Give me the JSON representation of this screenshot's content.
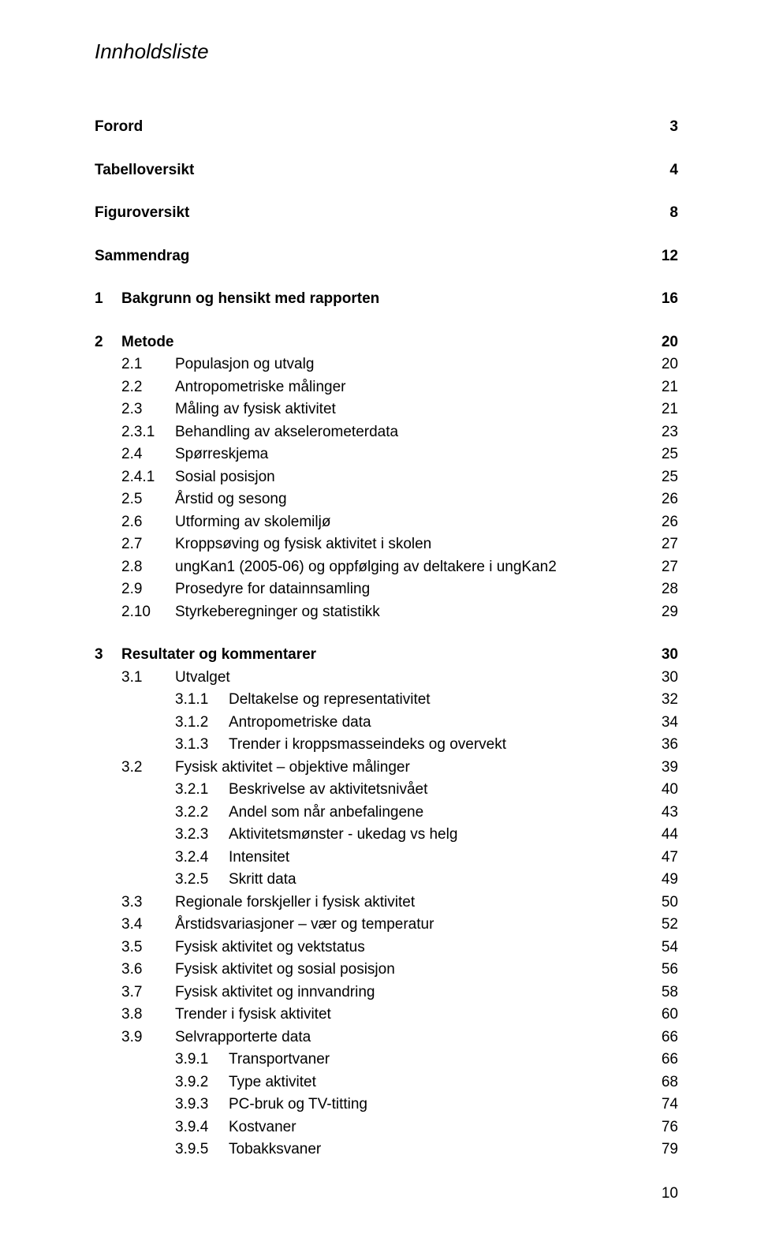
{
  "title": "Innholdsliste",
  "page_number": "10",
  "colors": {
    "background": "#ffffff",
    "text": "#000000"
  },
  "typography": {
    "base_fontsize": 19,
    "title_fontsize": 26,
    "font_family": "Arial"
  },
  "toc": [
    {
      "type": "spacer"
    },
    {
      "label": "Forord",
      "page": "3",
      "bold": true,
      "indent": 0
    },
    {
      "type": "spacer"
    },
    {
      "label": "Tabelloversikt",
      "page": "4",
      "bold": true,
      "indent": 0
    },
    {
      "type": "spacer"
    },
    {
      "label": "Figuroversikt",
      "page": "8",
      "bold": true,
      "indent": 0
    },
    {
      "type": "spacer"
    },
    {
      "label": "Sammendrag",
      "page": "12",
      "bold": true,
      "indent": 0
    },
    {
      "type": "spacer"
    },
    {
      "num": "1",
      "label": "Bakgrunn og hensikt med rapporten",
      "page": "16",
      "bold": true,
      "indent": 0,
      "numclass": "num-0"
    },
    {
      "type": "spacer"
    },
    {
      "num": "2",
      "label": "Metode",
      "page": "20",
      "bold": true,
      "indent": 0,
      "numclass": "num-0"
    },
    {
      "num": "2.1",
      "label": "Populasjon og utvalg",
      "page": "20",
      "indent": 1,
      "numclass": "num-1"
    },
    {
      "num": "2.2",
      "label": "Antropometriske målinger",
      "page": "21",
      "indent": 1,
      "numclass": "num-1"
    },
    {
      "num": "2.3",
      "label": "Måling av fysisk aktivitet",
      "page": "21",
      "indent": 1,
      "numclass": "num-1"
    },
    {
      "num": "2.3.1",
      "label": "Behandling av akselerometerdata",
      "page": "23",
      "indent": 1,
      "numclass": "num-1"
    },
    {
      "num": "2.4",
      "label": "Spørreskjema",
      "page": "25",
      "indent": 1,
      "numclass": "num-1"
    },
    {
      "num": "2.4.1",
      "label": "Sosial posisjon",
      "page": "25",
      "indent": 1,
      "numclass": "num-1"
    },
    {
      "num": "2.5",
      "label": "Årstid og sesong",
      "page": "26",
      "indent": 1,
      "numclass": "num-1"
    },
    {
      "num": "2.6",
      "label": "Utforming av skolemiljø",
      "page": "26",
      "indent": 1,
      "numclass": "num-1"
    },
    {
      "num": "2.7",
      "label": "Kroppsøving og fysisk aktivitet i skolen",
      "page": "27",
      "indent": 1,
      "numclass": "num-1"
    },
    {
      "num": "2.8",
      "label": "ungKan1 (2005-06) og oppfølging av deltakere i ungKan2",
      "page": "27",
      "indent": 1,
      "numclass": "num-1"
    },
    {
      "num": "2.9",
      "label": "Prosedyre for datainnsamling",
      "page": "28",
      "indent": 1,
      "numclass": "num-1"
    },
    {
      "num": "2.10",
      "label": "Styrkeberegninger og statistikk",
      "page": "29",
      "indent": 1,
      "numclass": "num-1"
    },
    {
      "type": "spacer"
    },
    {
      "num": "3",
      "label": "Resultater og kommentarer",
      "page": "30",
      "bold": true,
      "indent": 0,
      "numclass": "num-0"
    },
    {
      "num": "3.1",
      "label": "Utvalget",
      "page": "30",
      "indent": 1,
      "numclass": "num-1"
    },
    {
      "num": "3.1.1",
      "label": "Deltakelse og representativitet",
      "page": "32",
      "indent": 2,
      "numclass": "num-2"
    },
    {
      "num": "3.1.2",
      "label": "Antropometriske data",
      "page": "34",
      "indent": 2,
      "numclass": "num-2"
    },
    {
      "num": "3.1.3",
      "label": "Trender i kroppsmasseindeks og overvekt",
      "page": "36",
      "indent": 2,
      "numclass": "num-2"
    },
    {
      "num": "3.2",
      "label": "Fysisk aktivitet – objektive målinger",
      "page": "39",
      "indent": 1,
      "numclass": "num-1"
    },
    {
      "num": "3.2.1",
      "label": "Beskrivelse av aktivitetsnivået",
      "page": "40",
      "indent": 2,
      "numclass": "num-2"
    },
    {
      "num": "3.2.2",
      "label": "Andel som når anbefalingene",
      "page": "43",
      "indent": 2,
      "numclass": "num-2"
    },
    {
      "num": "3.2.3",
      "label": "Aktivitetsmønster - ukedag vs helg",
      "page": "44",
      "indent": 2,
      "numclass": "num-2"
    },
    {
      "num": "3.2.4",
      "label": "Intensitet",
      "page": "47",
      "indent": 2,
      "numclass": "num-2"
    },
    {
      "num": "3.2.5",
      "label": "Skritt data",
      "page": "49",
      "indent": 2,
      "numclass": "num-2"
    },
    {
      "num": "3.3",
      "label": "Regionale forskjeller i fysisk aktivitet",
      "page": "50",
      "indent": 1,
      "numclass": "num-1"
    },
    {
      "num": "3.4",
      "label": "Årstidsvariasjoner – vær og temperatur",
      "page": "52",
      "indent": 1,
      "numclass": "num-1"
    },
    {
      "num": "3.5",
      "label": "Fysisk aktivitet og vektstatus",
      "page": "54",
      "indent": 1,
      "numclass": "num-1"
    },
    {
      "num": "3.6",
      "label": "Fysisk aktivitet og sosial posisjon",
      "page": "56",
      "indent": 1,
      "numclass": "num-1"
    },
    {
      "num": "3.7",
      "label": "Fysisk aktivitet og innvandring",
      "page": "58",
      "indent": 1,
      "numclass": "num-1"
    },
    {
      "num": "3.8",
      "label": "Trender i fysisk aktivitet",
      "page": "60",
      "indent": 1,
      "numclass": "num-1"
    },
    {
      "num": "3.9",
      "label": "Selvrapporterte data",
      "page": "66",
      "indent": 1,
      "numclass": "num-1"
    },
    {
      "num": "3.9.1",
      "label": "Transportvaner",
      "page": "66",
      "indent": 2,
      "numclass": "num-2"
    },
    {
      "num": "3.9.2",
      "label": "Type aktivitet",
      "page": "68",
      "indent": 2,
      "numclass": "num-2"
    },
    {
      "num": "3.9.3",
      "label": "PC-bruk og TV-titting",
      "page": "74",
      "indent": 2,
      "numclass": "num-2"
    },
    {
      "num": "3.9.4",
      "label": "Kostvaner",
      "page": "76",
      "indent": 2,
      "numclass": "num-2"
    },
    {
      "num": "3.9.5",
      "label": "Tobakksvaner",
      "page": "79",
      "indent": 2,
      "numclass": "num-2"
    }
  ]
}
